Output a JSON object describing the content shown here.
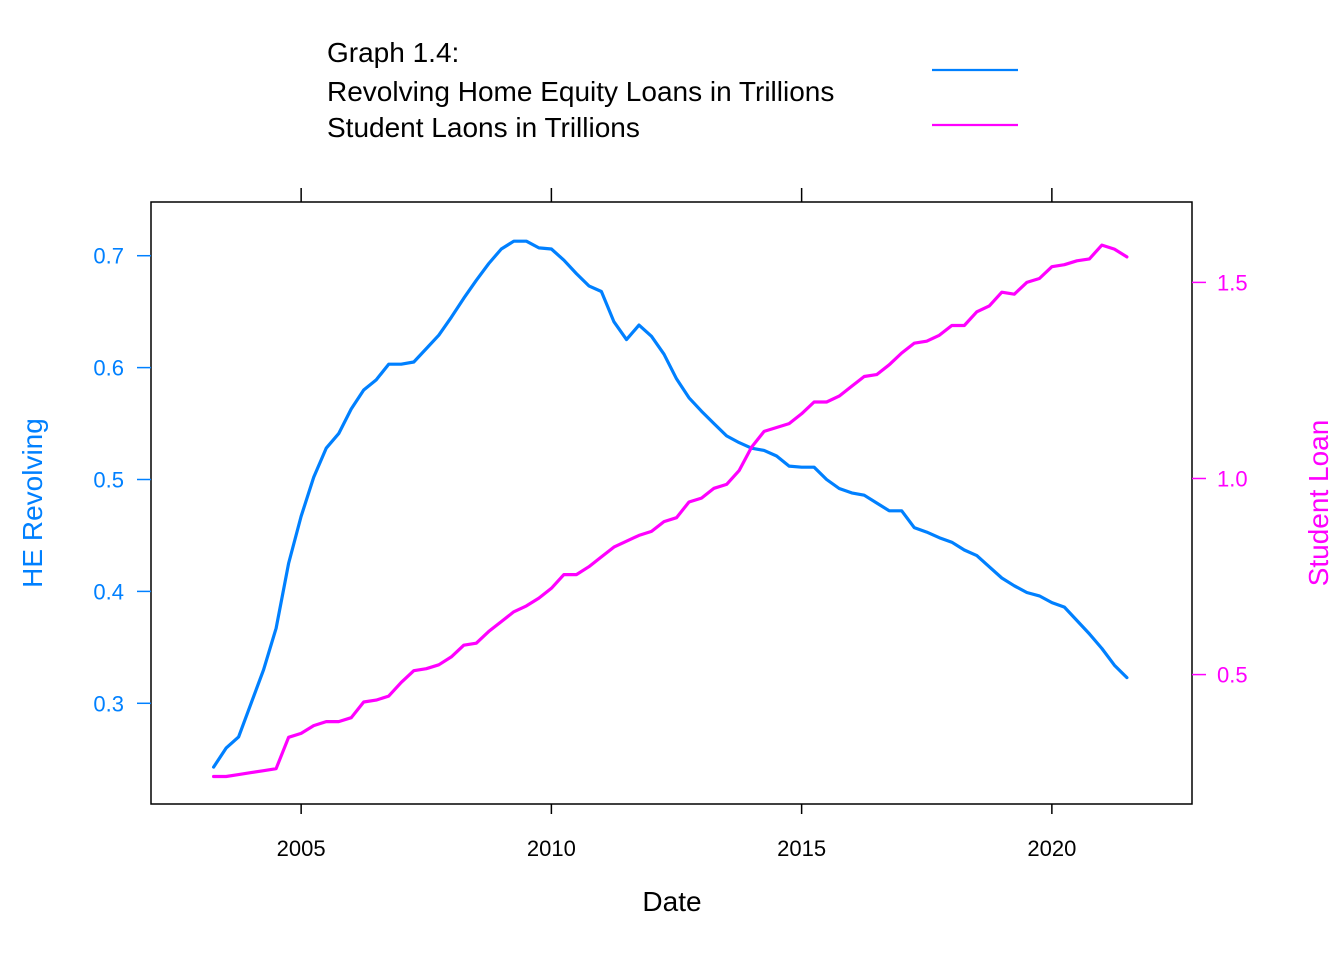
{
  "chart_data": {
    "type": "line",
    "title_lines": [
      "Graph 1.4:"
    ],
    "xlabel": "Date",
    "ylabel_left": "HE Revolving",
    "ylabel_right": "Student Loan",
    "xlim": [
      2002.0,
      2022.8
    ],
    "ylim_left": [
      0.21,
      0.748
    ],
    "ylim_right": [
      0.17,
      1.705
    ],
    "x_ticks": [
      2005,
      2010,
      2015,
      2020
    ],
    "x_tick_labels": [
      "2005",
      "2010",
      "2015",
      "2020"
    ],
    "y_left_ticks": [
      0.3,
      0.4,
      0.5,
      0.6,
      0.7
    ],
    "y_left_tick_labels": [
      "0.3",
      "0.4",
      "0.5",
      "0.6",
      "0.7"
    ],
    "y_right_ticks": [
      0.5,
      1.0,
      1.5
    ],
    "y_right_tick_labels": [
      "0.5",
      "1.0",
      "1.5"
    ],
    "legend_position": "top",
    "grid": false,
    "series": [
      {
        "name": "Revolving Home Equity Loans in Trillions",
        "axis": "left",
        "color": "#0080ff",
        "x": [
          2003.25,
          2003.5,
          2003.75,
          2004.0,
          2004.25,
          2004.5,
          2004.75,
          2005.0,
          2005.25,
          2005.5,
          2005.75,
          2006.0,
          2006.25,
          2006.5,
          2006.75,
          2007.0,
          2007.25,
          2007.5,
          2007.75,
          2008.0,
          2008.25,
          2008.5,
          2008.75,
          2009.0,
          2009.25,
          2009.5,
          2009.75,
          2010.0,
          2010.25,
          2010.5,
          2010.75,
          2011.0,
          2011.25,
          2011.5,
          2011.75,
          2012.0,
          2012.25,
          2012.5,
          2012.75,
          2013.0,
          2013.25,
          2013.5,
          2013.75,
          2014.0,
          2014.25,
          2014.5,
          2014.75,
          2015.0,
          2015.25,
          2015.5,
          2015.75,
          2016.0,
          2016.25,
          2016.5,
          2016.75,
          2017.0,
          2017.25,
          2017.5,
          2017.75,
          2018.0,
          2018.25,
          2018.5,
          2018.75,
          2019.0,
          2019.25,
          2019.5,
          2019.75,
          2020.0,
          2020.25,
          2020.5,
          2020.75,
          2021.0,
          2021.25,
          2021.5
        ],
        "values": [
          0.243,
          0.26,
          0.27,
          0.3,
          0.33,
          0.367,
          0.425,
          0.467,
          0.502,
          0.528,
          0.541,
          0.563,
          0.58,
          0.589,
          0.603,
          0.603,
          0.605,
          0.617,
          0.629,
          0.645,
          0.662,
          0.678,
          0.693,
          0.706,
          0.713,
          0.713,
          0.707,
          0.706,
          0.696,
          0.684,
          0.673,
          0.668,
          0.641,
          0.625,
          0.638,
          0.628,
          0.612,
          0.59,
          0.573,
          0.561,
          0.55,
          0.539,
          0.533,
          0.528,
          0.526,
          0.521,
          0.512,
          0.511,
          0.511,
          0.5,
          0.492,
          0.488,
          0.486,
          0.479,
          0.472,
          0.472,
          0.457,
          0.453,
          0.448,
          0.444,
          0.437,
          0.432,
          0.422,
          0.412,
          0.405,
          0.399,
          0.396,
          0.39,
          0.386,
          0.374,
          0.362,
          0.349,
          0.334,
          0.323
        ]
      },
      {
        "name": "Student Laons in Trillions",
        "axis": "right",
        "color": "#ff00ff",
        "x": [
          2003.25,
          2003.5,
          2003.75,
          2004.0,
          2004.25,
          2004.5,
          2004.75,
          2005.0,
          2005.25,
          2005.5,
          2005.75,
          2006.0,
          2006.25,
          2006.5,
          2006.75,
          2007.0,
          2007.25,
          2007.5,
          2007.75,
          2008.0,
          2008.25,
          2008.5,
          2008.75,
          2009.0,
          2009.25,
          2009.5,
          2009.75,
          2010.0,
          2010.25,
          2010.5,
          2010.75,
          2011.0,
          2011.25,
          2011.5,
          2011.75,
          2012.0,
          2012.25,
          2012.5,
          2012.75,
          2013.0,
          2013.25,
          2013.5,
          2013.75,
          2014.0,
          2014.25,
          2014.5,
          2014.75,
          2015.0,
          2015.25,
          2015.5,
          2015.75,
          2016.0,
          2016.25,
          2016.5,
          2016.75,
          2017.0,
          2017.25,
          2017.5,
          2017.75,
          2018.0,
          2018.25,
          2018.5,
          2018.75,
          2019.0,
          2019.25,
          2019.5,
          2019.75,
          2020.0,
          2020.25,
          2020.5,
          2020.75,
          2021.0,
          2021.25,
          2021.5
        ],
        "values": [
          0.24,
          0.24,
          0.245,
          0.25,
          0.255,
          0.26,
          0.34,
          0.35,
          0.37,
          0.38,
          0.38,
          0.39,
          0.43,
          0.435,
          0.445,
          0.48,
          0.51,
          0.515,
          0.525,
          0.545,
          0.575,
          0.58,
          0.61,
          0.635,
          0.66,
          0.675,
          0.695,
          0.72,
          0.755,
          0.755,
          0.775,
          0.8,
          0.825,
          0.84,
          0.855,
          0.865,
          0.89,
          0.9,
          0.94,
          0.95,
          0.975,
          0.985,
          1.02,
          1.08,
          1.12,
          1.13,
          1.14,
          1.165,
          1.195,
          1.195,
          1.21,
          1.235,
          1.26,
          1.265,
          1.29,
          1.32,
          1.345,
          1.35,
          1.365,
          1.39,
          1.39,
          1.425,
          1.44,
          1.475,
          1.47,
          1.5,
          1.51,
          1.54,
          1.545,
          1.555,
          1.56,
          1.595,
          1.585,
          1.565
        ]
      }
    ]
  }
}
